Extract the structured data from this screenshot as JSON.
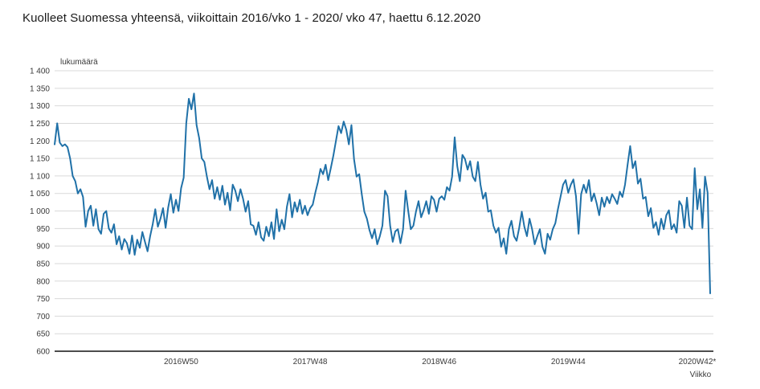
{
  "title": "Kuolleet Suomessa yhteensä, viikoittain 2016/vko 1 - 2020/ vko 47, haettu 6.12.2020",
  "colors": {
    "line": "#2071a8",
    "grid": "#d9d9d9",
    "axis": "#4d4d4d",
    "text": "#3a3a3a",
    "background": "#ffffff"
  },
  "chart_data": {
    "type": "line",
    "title": "Kuolleet Suomessa yhteensä, viikoittain 2016/vko 1 - 2020/ vko 47, haettu 6.12.2020",
    "ylabel": "lukumäärä",
    "xlabel": "Viikko",
    "ylim": [
      600,
      1400
    ],
    "grid": true,
    "legend_position": "none",
    "x_start": "2016 vko 1",
    "x_end": "2020 vko 47",
    "y_ticks": [
      {
        "value": 1400,
        "label": "1 400"
      },
      {
        "value": 1350,
        "label": "1 350"
      },
      {
        "value": 1300,
        "label": "1 300"
      },
      {
        "value": 1250,
        "label": "1 250"
      },
      {
        "value": 1200,
        "label": "1 200"
      },
      {
        "value": 1150,
        "label": "1 150"
      },
      {
        "value": 1100,
        "label": "1 100"
      },
      {
        "value": 1050,
        "label": "1 050"
      },
      {
        "value": 1000,
        "label": "1 000"
      },
      {
        "value": 950,
        "label": "950"
      },
      {
        "value": 900,
        "label": "900"
      },
      {
        "value": 850,
        "label": "850"
      },
      {
        "value": 800,
        "label": "800"
      },
      {
        "value": 750,
        "label": "750"
      },
      {
        "value": 700,
        "label": "700"
      },
      {
        "value": 650,
        "label": "650"
      },
      {
        "value": 600,
        "label": "600"
      }
    ],
    "x_ticks": [
      {
        "index": 49,
        "label": "2016W50"
      },
      {
        "index": 99,
        "label": "2017W48"
      },
      {
        "index": 149,
        "label": "2018W46"
      },
      {
        "index": 199,
        "label": "2019W44"
      },
      {
        "index": 249,
        "label": "2020W42*"
      }
    ],
    "values": [
      1190,
      1250,
      1195,
      1185,
      1190,
      1182,
      1150,
      1100,
      1085,
      1050,
      1062,
      1040,
      955,
      1000,
      1015,
      958,
      1005,
      948,
      935,
      992,
      1000,
      950,
      938,
      962,
      905,
      928,
      890,
      920,
      908,
      878,
      930,
      875,
      918,
      895,
      940,
      912,
      885,
      928,
      962,
      1005,
      955,
      978,
      1008,
      952,
      1010,
      1048,
      995,
      1032,
      1000,
      1065,
      1095,
      1250,
      1320,
      1290,
      1335,
      1245,
      1208,
      1150,
      1140,
      1098,
      1062,
      1088,
      1035,
      1068,
      1032,
      1072,
      1018,
      1052,
      1002,
      1075,
      1058,
      1028,
      1062,
      1035,
      998,
      1028,
      962,
      958,
      932,
      968,
      925,
      915,
      955,
      928,
      968,
      920,
      1005,
      942,
      975,
      948,
      1012,
      1048,
      982,
      1025,
      998,
      1032,
      992,
      1015,
      988,
      1008,
      1018,
      1052,
      1082,
      1120,
      1105,
      1132,
      1088,
      1122,
      1158,
      1200,
      1242,
      1222,
      1255,
      1232,
      1190,
      1245,
      1148,
      1098,
      1105,
      1048,
      998,
      978,
      945,
      922,
      948,
      905,
      928,
      958,
      1058,
      1042,
      958,
      912,
      942,
      948,
      908,
      948,
      1058,
      1000,
      948,
      958,
      998,
      1028,
      982,
      1002,
      1028,
      992,
      1042,
      1032,
      998,
      1035,
      1042,
      1032,
      1068,
      1058,
      1098,
      1210,
      1128,
      1085,
      1160,
      1148,
      1118,
      1142,
      1098,
      1085,
      1140,
      1075,
      1035,
      1052,
      998,
      1002,
      958,
      938,
      952,
      898,
      922,
      878,
      948,
      972,
      928,
      915,
      952,
      998,
      955,
      928,
      978,
      948,
      905,
      928,
      948,
      898,
      878,
      935,
      918,
      948,
      965,
      1005,
      1040,
      1075,
      1088,
      1052,
      1075,
      1090,
      1042,
      935,
      1048,
      1075,
      1052,
      1088,
      1028,
      1050,
      1022,
      988,
      1038,
      1012,
      1040,
      1022,
      1048,
      1035,
      1020,
      1055,
      1040,
      1075,
      1132,
      1185,
      1122,
      1142,
      1078,
      1092,
      1035,
      1040,
      985,
      1008,
      952,
      968,
      932,
      978,
      948,
      988,
      1002,
      948,
      962,
      938,
      1028,
      1015,
      952,
      1038,
      958,
      948,
      1122,
      1005,
      1062,
      952,
      1098,
      1052,
      765
    ]
  }
}
